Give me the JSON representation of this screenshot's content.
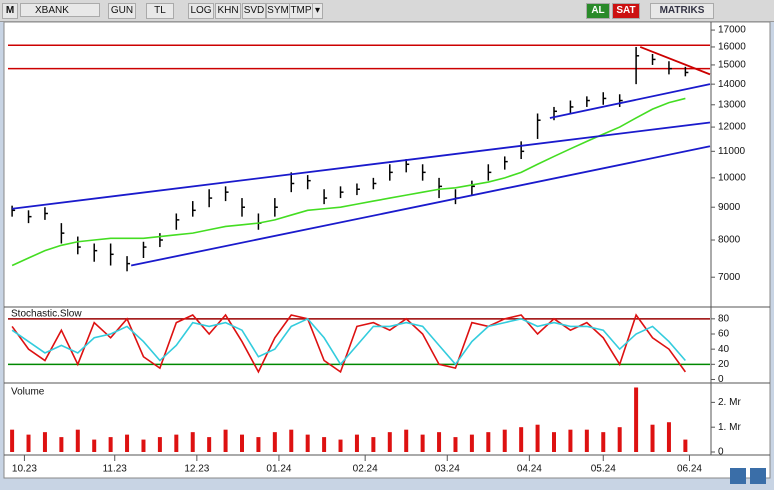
{
  "toolbar": {
    "logo": "M",
    "symbol": "XBANK",
    "buttons": [
      "GUN",
      "TL",
      "LOG",
      "KHN",
      "SVD",
      "SYM",
      "TMP"
    ],
    "buy": "AL",
    "sell": "SAT",
    "brand": "MATRIKS"
  },
  "chart_data": [
    {
      "type": "ohlc",
      "color": "#000000",
      "log": true,
      "x": [
        0,
        4,
        8,
        12,
        16,
        20,
        24,
        28,
        32,
        36,
        40,
        44,
        48,
        52,
        56,
        60,
        64,
        68,
        72,
        76,
        80,
        84,
        88,
        92,
        96,
        100,
        104,
        108,
        112,
        116,
        120,
        124,
        128,
        132,
        136,
        140,
        144,
        148,
        152,
        156,
        160,
        164
      ],
      "high": [
        9050,
        8900,
        9000,
        8500,
        8100,
        7900,
        7900,
        7550,
        7950,
        8200,
        8800,
        9200,
        9600,
        9700,
        9300,
        8800,
        9300,
        10200,
        10100,
        9600,
        9700,
        9800,
        10000,
        10500,
        10700,
        10500,
        10000,
        9600,
        9900,
        10500,
        10800,
        11400,
        12600,
        12900,
        13200,
        13400,
        13600,
        13500,
        16000,
        15600,
        15200,
        14900
      ],
      "low": [
        8700,
        8500,
        8600,
        7900,
        7600,
        7400,
        7300,
        7150,
        7500,
        7800,
        8300,
        8700,
        9000,
        9200,
        8700,
        8300,
        8700,
        9500,
        9600,
        9100,
        9300,
        9400,
        9600,
        9900,
        10200,
        9900,
        9300,
        9100,
        9400,
        9900,
        10300,
        10700,
        11500,
        12300,
        12600,
        12900,
        13000,
        12900,
        14000,
        15000,
        14500,
        14400
      ],
      "close": [
        8900,
        8700,
        8800,
        8200,
        7800,
        7700,
        7600,
        7350,
        7800,
        8000,
        8600,
        8900,
        9300,
        9500,
        9000,
        8500,
        9000,
        9800,
        9900,
        9300,
        9500,
        9600,
        9800,
        10200,
        10500,
        10200,
        9700,
        9300,
        9700,
        10200,
        10600,
        11000,
        12300,
        12700,
        12900,
        13200,
        13300,
        13200,
        15500,
        15300,
        14800,
        14600
      ],
      "series": [
        {
          "color": "#44dd22",
          "values": [
            7300,
            7500,
            7700,
            7850,
            7950,
            8000,
            8050,
            8050,
            8050,
            8100,
            8150,
            8200,
            8300,
            8400,
            8450,
            8500,
            8600,
            8750,
            8900,
            8950,
            9000,
            9100,
            9200,
            9300,
            9400,
            9500,
            9600,
            9650,
            9750,
            9850,
            10000,
            10200,
            10500,
            10800,
            11100,
            11400,
            11700,
            12000,
            12400,
            12800,
            13100,
            13300
          ]
        }
      ],
      "hlines": [
        {
          "value": 16100,
          "color": "#cc0000"
        },
        {
          "value": 14800,
          "color": "#cc0000"
        }
      ],
      "trendlines": [
        {
          "x": [
            0,
            170
          ],
          "y": [
            8950,
            12200
          ],
          "color": "#1a1acc"
        },
        {
          "x": [
            29,
            170
          ],
          "y": [
            7300,
            11200
          ],
          "color": "#1a1acc"
        },
        {
          "x": [
            131,
            170
          ],
          "y": [
            12400,
            14000
          ],
          "color": "#1a1acc"
        },
        {
          "x": [
            153,
            170
          ],
          "y": [
            16000,
            14500
          ],
          "color": "#cc0000"
        }
      ],
      "xlim": [
        -1,
        170
      ],
      "ylim": [
        6450,
        17500
      ],
      "yticks": [
        7000,
        8000,
        9000,
        10000,
        11000,
        12000,
        13000,
        14000,
        15000,
        16000,
        17000
      ]
    },
    {
      "type": "line",
      "title": "Stochastic.Slow",
      "x": [
        0,
        4,
        8,
        12,
        16,
        20,
        24,
        28,
        32,
        36,
        40,
        44,
        48,
        52,
        56,
        60,
        64,
        68,
        72,
        76,
        80,
        84,
        88,
        92,
        96,
        100,
        104,
        108,
        112,
        116,
        120,
        124,
        128,
        132,
        136,
        140,
        144,
        148,
        152,
        156,
        160,
        164
      ],
      "series": [
        {
          "color": "#dd1111",
          "values": [
            70,
            40,
            25,
            65,
            20,
            75,
            55,
            80,
            30,
            15,
            75,
            85,
            60,
            85,
            50,
            10,
            55,
            85,
            80,
            25,
            10,
            70,
            75,
            65,
            80,
            60,
            20,
            15,
            75,
            70,
            80,
            85,
            60,
            80,
            65,
            75,
            55,
            20,
            85,
            55,
            40,
            10
          ]
        },
        {
          "color": "#33ccdd",
          "values": [
            65,
            50,
            35,
            45,
            35,
            55,
            60,
            70,
            50,
            25,
            45,
            75,
            70,
            75,
            65,
            30,
            40,
            70,
            80,
            55,
            20,
            45,
            70,
            70,
            75,
            70,
            45,
            20,
            50,
            70,
            75,
            80,
            70,
            75,
            70,
            70,
            65,
            40,
            60,
            70,
            50,
            25
          ]
        }
      ],
      "hlines": [
        {
          "value": 80,
          "color": "#990000"
        },
        {
          "value": 20,
          "color": "#008800"
        }
      ],
      "xlim": [
        -1,
        170
      ],
      "ylim": [
        -2,
        89
      ],
      "yticks": [
        0,
        20,
        40,
        60,
        80
      ]
    },
    {
      "type": "bar",
      "title": "Volume",
      "color": "#dd1111",
      "x": [
        0,
        4,
        8,
        12,
        16,
        20,
        24,
        28,
        32,
        36,
        40,
        44,
        48,
        52,
        56,
        60,
        64,
        68,
        72,
        76,
        80,
        84,
        88,
        92,
        96,
        100,
        104,
        108,
        112,
        116,
        120,
        124,
        128,
        132,
        136,
        140,
        144,
        148,
        152,
        156,
        160,
        164
      ],
      "values": [
        0.9,
        0.7,
        0.8,
        0.6,
        0.9,
        0.5,
        0.6,
        0.7,
        0.5,
        0.6,
        0.7,
        0.8,
        0.6,
        0.9,
        0.7,
        0.6,
        0.8,
        0.9,
        0.7,
        0.6,
        0.5,
        0.7,
        0.6,
        0.8,
        0.9,
        0.7,
        0.8,
        0.6,
        0.7,
        0.8,
        0.9,
        1.0,
        1.1,
        0.8,
        0.9,
        0.9,
        0.8,
        1.0,
        2.6,
        1.1,
        1.2,
        0.5
      ],
      "xlim": [
        -1,
        170
      ],
      "ylim": [
        0,
        2.7
      ],
      "yticks": [
        0,
        {
          "value": 1,
          "label": "1. Mr"
        },
        {
          "value": 2,
          "label": "2. Mr"
        }
      ],
      "xticks": [
        {
          "value": 3,
          "label": "10.23"
        },
        {
          "value": 25,
          "label": "11.23"
        },
        {
          "value": 45,
          "label": "12.23"
        },
        {
          "value": 65,
          "label": "01.24"
        },
        {
          "value": 86,
          "label": "02.24"
        },
        {
          "value": 106,
          "label": "03.24"
        },
        {
          "value": 126,
          "label": "04.24"
        },
        {
          "value": 144,
          "label": "05.24"
        },
        {
          "value": 165,
          "label": "06.24"
        }
      ]
    }
  ]
}
